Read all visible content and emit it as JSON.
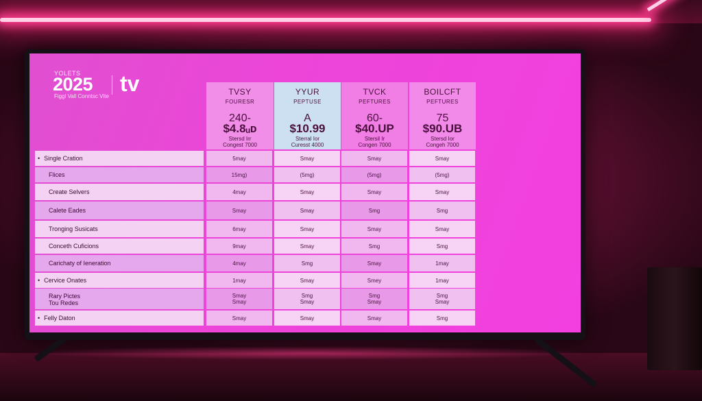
{
  "brand": {
    "kicker": "YOLETS",
    "year": "2025",
    "product": "tv",
    "tagline": "Figgl Vall Conntsc Vlte"
  },
  "plans": [
    {
      "name": "TVSY",
      "feature": "FOURESR",
      "top": "240-",
      "price": "$4.8ᵤᴅ",
      "desc": [
        "Stersd Irr",
        "Congest 7000"
      ]
    },
    {
      "name": "YYUR",
      "feature": "PEPTUSE",
      "top": "A",
      "price": "$10.99",
      "desc": [
        "Sterral Ior",
        "Curesst 4000"
      ]
    },
    {
      "name": "TVCK",
      "feature": "PEFTURES",
      "top": "60-",
      "price": "$40.UP",
      "desc": [
        "Stersil Ir",
        "Congen 7000"
      ]
    },
    {
      "name": "BOILCFT",
      "feature": "PEFTURES",
      "top": "75",
      "price": "$90.UB",
      "desc": [
        "Stersd Ior",
        "Congeh 7000"
      ]
    }
  ],
  "rows": [
    {
      "label": "Single Cration",
      "values": [
        "5may",
        "Smay",
        "Smay",
        "Smay"
      ],
      "tone": "light",
      "bullet": true
    },
    {
      "label": "Flices",
      "values": [
        "15mg)",
        "(5mg)",
        "(5mg)",
        "(5mg)"
      ],
      "tone": "dark",
      "bullet": false
    },
    {
      "label": "Create Selvers",
      "values": [
        "4may",
        "Smay",
        "Smay",
        "Smay"
      ],
      "tone": "light",
      "bullet": false
    },
    {
      "label": "Calete Eades",
      "values": [
        "Smay",
        "Smay",
        "Smg",
        "Smg"
      ],
      "tone": "dark",
      "bullet": false
    },
    {
      "label": "Tronging Susicats",
      "values": [
        "6may",
        "Smay",
        "Smay",
        "Smay"
      ],
      "tone": "light",
      "bullet": false
    },
    {
      "label": "Conceth Cuficions",
      "values": [
        "9may",
        "Smay",
        "Smg",
        "Smg"
      ],
      "tone": "light",
      "bullet": false
    },
    {
      "label": "Carichaty of Ieneration",
      "values": [
        "4may",
        "Smg",
        "Smay",
        "1may"
      ],
      "tone": "dark",
      "bullet": false
    },
    {
      "label": "Cervice Onates",
      "values": [
        "1may",
        "Smay",
        "Smey",
        "1may"
      ],
      "tone": "light",
      "bullet": true
    },
    {
      "label": "Rary Pictes",
      "label2": "Tou Redes",
      "values": [
        "Smay",
        "Smg",
        "Smg",
        "Smg"
      ],
      "values2": [
        "Smay",
        "Smay",
        "Smay",
        "Smay"
      ],
      "tone": "dark",
      "bullet": false
    },
    {
      "label": "Felly Daton",
      "values": [
        "Smay",
        "Smay",
        "Smay",
        "Smg"
      ],
      "tone": "light",
      "bullet": true
    }
  ]
}
